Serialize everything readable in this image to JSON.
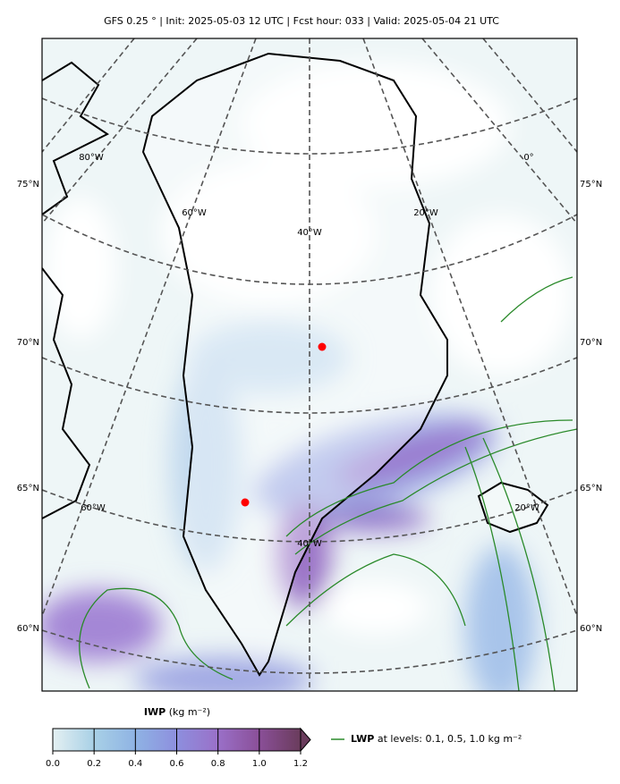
{
  "title": "GFS 0.25 °  |  Init: 2025-05-03 12 UTC  |  Fcst hour: 033  |  Valid: 2025-05-04 21 UTC",
  "map": {
    "lat_labels_left": [
      "75°N",
      "70°N",
      "65°N",
      "60°N"
    ],
    "lat_labels_right": [
      "75°N",
      "70°N",
      "65°N",
      "60°N"
    ],
    "lon_labels": [
      "80°W",
      "0°",
      "60°W",
      "20°W",
      "40°W",
      "60°W",
      "20°W",
      "40°W"
    ]
  },
  "colorbar": {
    "label": "IWP",
    "units": "(kg m⁻²)",
    "lim": [
      0,
      1.2
    ],
    "ticks": [
      {
        "value": 0,
        "label": "0.0"
      },
      0.2,
      0.4,
      0.6,
      0.8,
      {
        "value": 1,
        "label": "1.0"
      },
      1.2
    ],
    "colors": [
      "#e4f0f2",
      "#a8d0e6",
      "#8fb3e4",
      "#8d8fde",
      "#9a70c8",
      "#8a4f98",
      "#6a3c5c"
    ]
  },
  "legend": {
    "label": "LWP",
    "text": "at levels: 0.1, 0.5, 1.0  kg m⁻²",
    "color": "#2a8a2a"
  }
}
